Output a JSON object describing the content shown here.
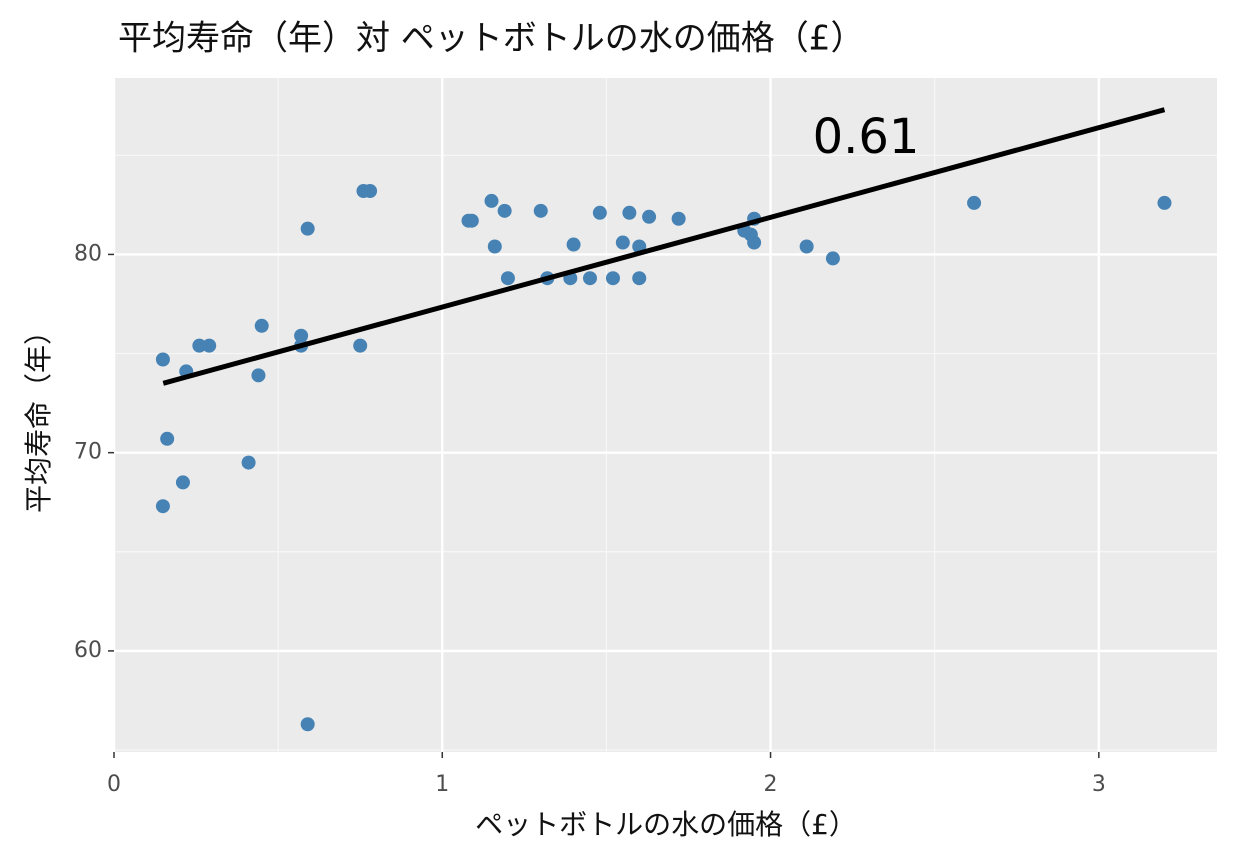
{
  "chart_data": {
    "type": "scatter",
    "title": "平均寿命（年）対 ペットボトルの水の価格（£）",
    "x_label": "ペットボトルの水の価格（£）",
    "y_label": "平均寿命（年）",
    "annotation": "0.61",
    "color": "#4682b4",
    "line_color": "#000000",
    "grid": true,
    "x": [
      0.149,
      0.162,
      0.149,
      0.21,
      0.22,
      0.26,
      0.29,
      0.41,
      0.44,
      0.45,
      0.57,
      0.57,
      0.59,
      0.59,
      0.75,
      0.76,
      0.78,
      1.08,
      1.09,
      1.15,
      1.16,
      1.19,
      1.2,
      1.3,
      1.32,
      1.39,
      1.4,
      1.45,
      1.48,
      1.52,
      1.55,
      1.57,
      1.6,
      1.6,
      1.63,
      1.72,
      1.92,
      1.94,
      1.95,
      1.95,
      2.11,
      2.19,
      2.62,
      3.2
    ],
    "y": [
      74.7,
      70.7,
      67.3,
      68.5,
      74.1,
      75.4,
      75.4,
      69.5,
      73.9,
      76.4,
      75.9,
      75.4,
      81.3,
      56.3,
      75.4,
      83.2,
      83.2,
      81.7,
      81.7,
      82.7,
      80.4,
      82.2,
      78.8,
      82.2,
      78.8,
      78.8,
      80.5,
      78.8,
      82.1,
      78.8,
      80.6,
      82.1,
      78.8,
      80.4,
      81.9,
      81.8,
      81.2,
      81.0,
      81.8,
      80.6,
      80.4,
      79.8,
      82.6,
      82.6
    ],
    "trend_line": {
      "x": [
        0.15,
        3.2
      ],
      "y": [
        73.5,
        87.3
      ]
    },
    "xlim": [
      0,
      3.36
    ],
    "ylim": [
      54.9,
      88.9
    ],
    "xticks": [
      0,
      1,
      2,
      3
    ],
    "yticks": [
      60,
      70,
      80
    ]
  }
}
